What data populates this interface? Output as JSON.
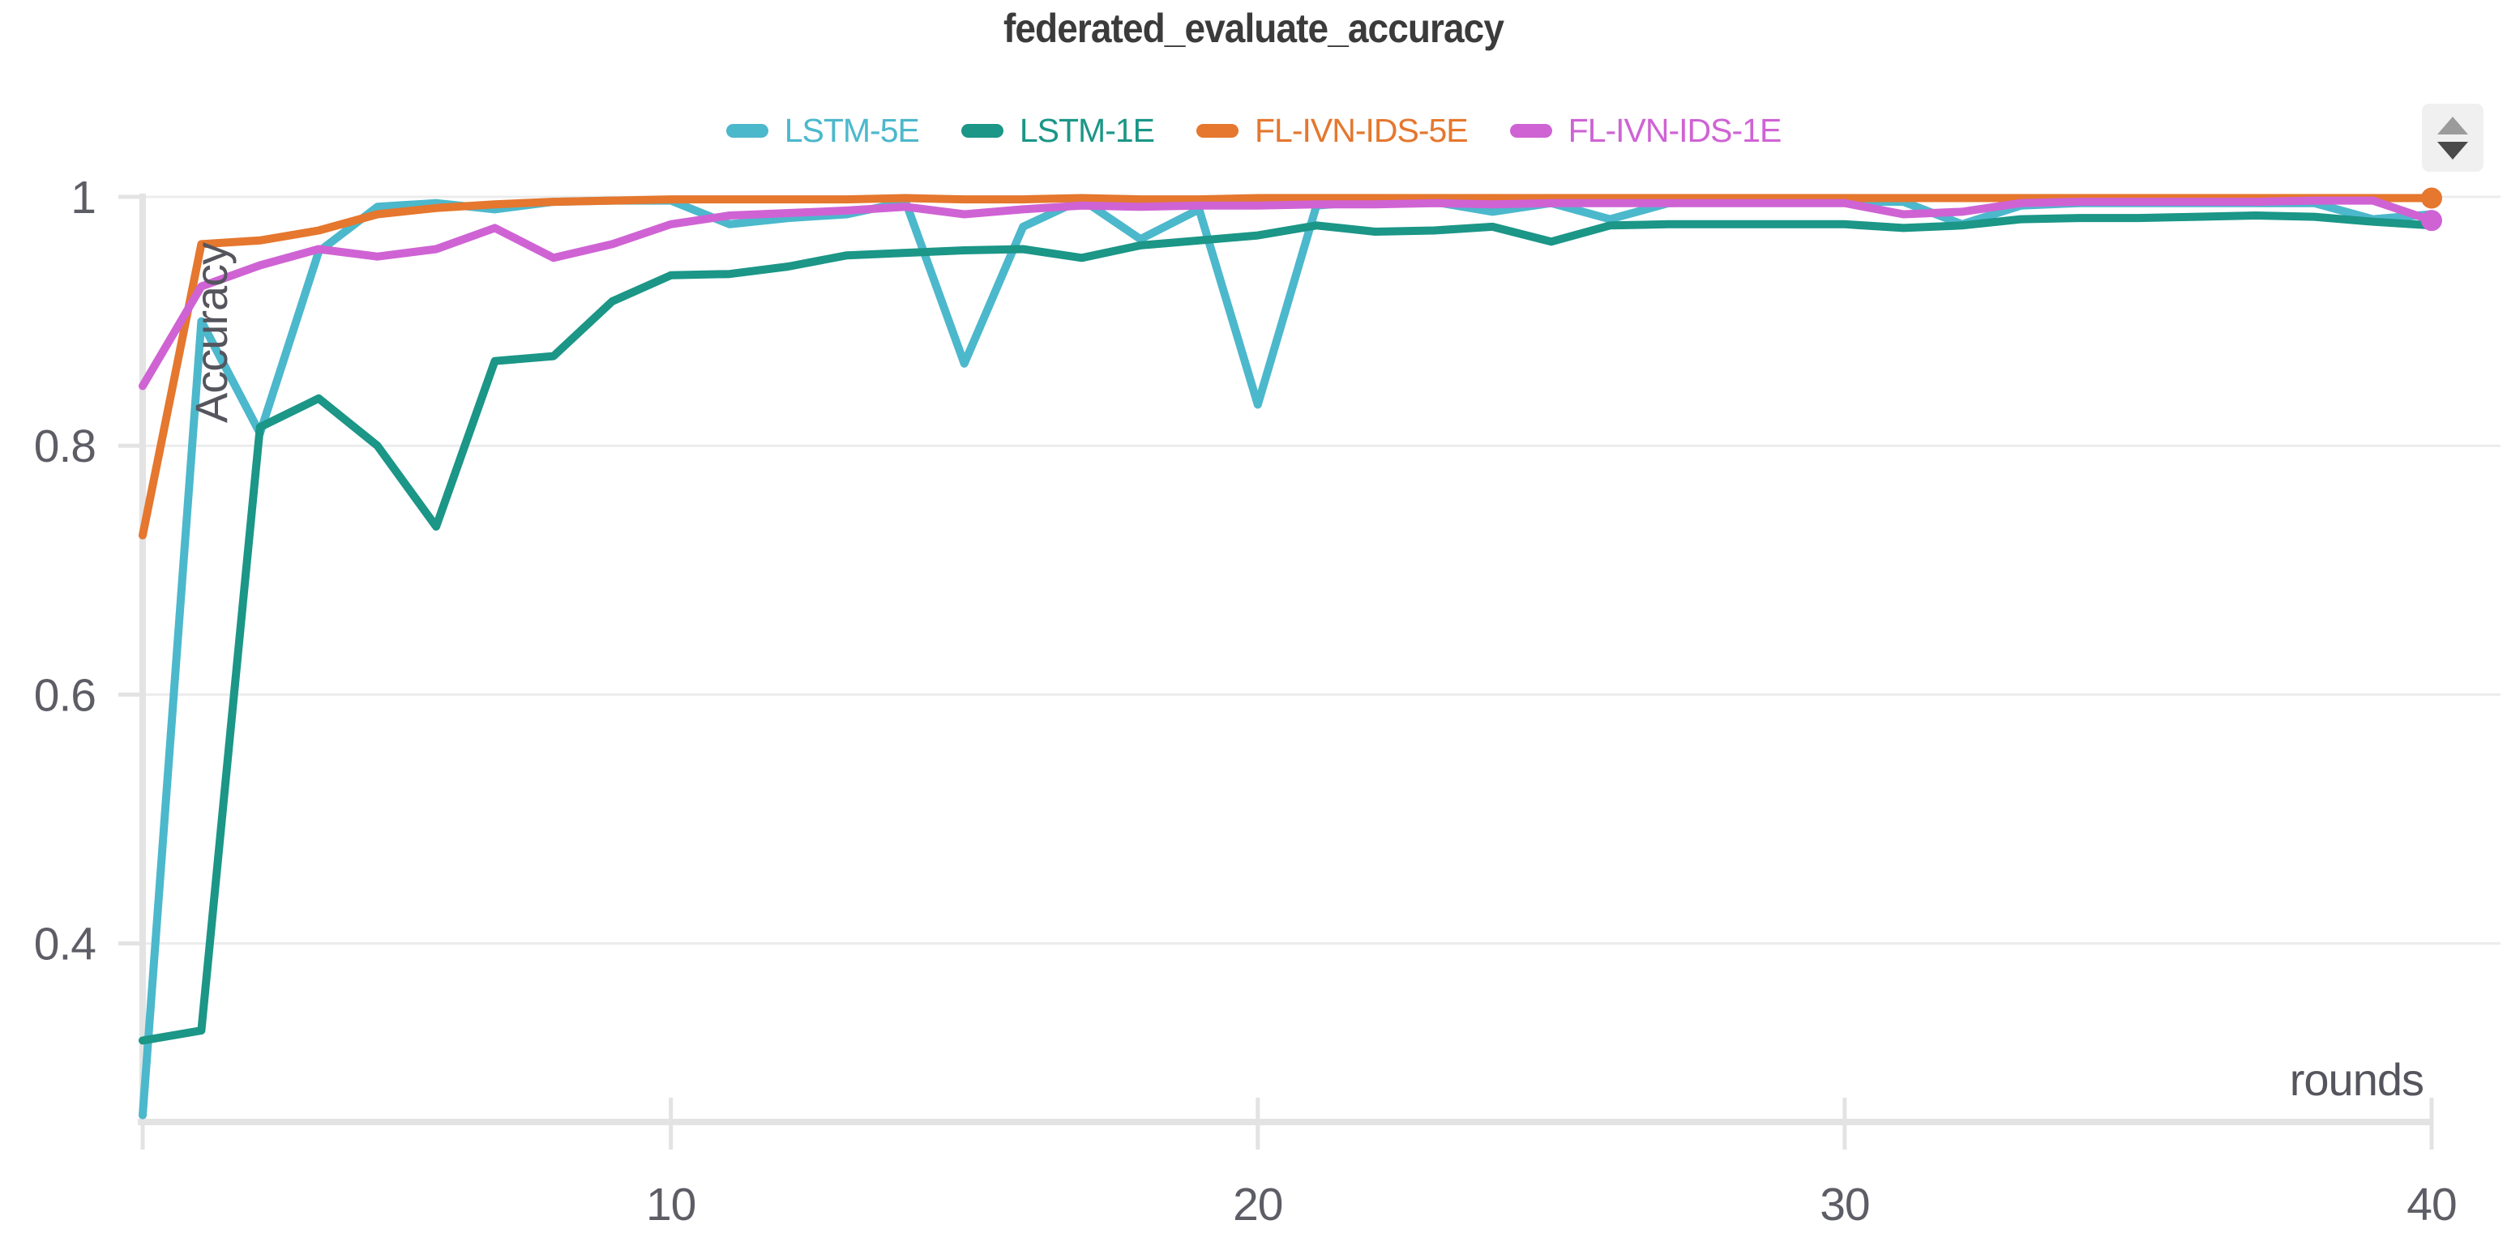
{
  "header": {
    "title": "federated_evaluate_accuracy"
  },
  "controls": {
    "stepper_icon": "up-down-stepper"
  },
  "chart_data": {
    "type": "line",
    "title": "federated_evaluate_accuracy",
    "xlabel": "rounds",
    "ylabel": "Accuracy",
    "xlim": [
      1,
      40
    ],
    "ylim": [
      0.2565,
      1.0
    ],
    "xticks": [
      10,
      20,
      30,
      40
    ],
    "xtick_labels": [
      "10",
      "20",
      "30",
      "40"
    ],
    "extra_xticks": [
      1
    ],
    "yticks": [
      0.4,
      0.6,
      0.8,
      1
    ],
    "ytick_labels": [
      "0.4",
      "0.6",
      "0.8",
      "1"
    ],
    "grid": "horizontal",
    "legend_position": "top-center",
    "x": [
      1,
      2,
      3,
      4,
      5,
      6,
      7,
      8,
      9,
      10,
      11,
      12,
      13,
      14,
      15,
      16,
      17,
      18,
      19,
      20,
      21,
      22,
      23,
      24,
      25,
      26,
      27,
      28,
      29,
      30,
      31,
      32,
      33,
      34,
      35,
      36,
      37,
      38,
      39,
      40
    ],
    "series": [
      {
        "name": "LSTM-5E",
        "color": "#4cb8cc",
        "end_dot": false,
        "values": [
          0.262,
          0.9,
          0.81,
          0.956,
          0.992,
          0.995,
          0.99,
          0.996,
          0.997,
          0.997,
          0.978,
          0.983,
          0.986,
          0.996,
          0.866,
          0.976,
          0.998,
          0.966,
          0.99,
          0.833,
          0.993,
          0.997,
          0.996,
          0.988,
          0.995,
          0.982,
          0.995,
          0.996,
          0.996,
          0.996,
          0.996,
          0.978,
          0.993,
          0.995,
          0.995,
          0.995,
          0.995,
          0.995,
          0.982,
          0.986
        ]
      },
      {
        "name": "LSTM-1E",
        "color": "#1b9687",
        "end_dot": false,
        "values": [
          0.322,
          0.33,
          0.815,
          0.838,
          0.8,
          0.735,
          0.868,
          0.872,
          0.916,
          0.937,
          0.938,
          0.944,
          0.953,
          0.955,
          0.957,
          0.958,
          0.951,
          0.961,
          0.965,
          0.969,
          0.977,
          0.972,
          0.973,
          0.976,
          0.964,
          0.977,
          0.978,
          0.978,
          0.978,
          0.978,
          0.975,
          0.977,
          0.982,
          0.983,
          0.983,
          0.984,
          0.985,
          0.984,
          0.98,
          0.977
        ]
      },
      {
        "name": "FL-IVN-IDS-5E",
        "color": "#e5772e",
        "end_dot": true,
        "values": [
          0.728,
          0.962,
          0.965,
          0.973,
          0.986,
          0.991,
          0.994,
          0.996,
          0.997,
          0.998,
          0.998,
          0.998,
          0.998,
          0.999,
          0.998,
          0.998,
          0.999,
          0.998,
          0.998,
          0.999,
          0.999,
          0.999,
          0.999,
          0.999,
          0.999,
          0.999,
          0.999,
          0.999,
          0.999,
          0.999,
          0.999,
          0.999,
          0.999,
          0.999,
          0.999,
          0.999,
          0.999,
          0.999,
          0.999,
          0.999
        ]
      },
      {
        "name": "FL-IVN-IDS-1E",
        "color": "#cf63d4",
        "end_dot": true,
        "values": [
          0.848,
          0.928,
          0.945,
          0.958,
          0.952,
          0.958,
          0.975,
          0.951,
          0.962,
          0.978,
          0.985,
          0.987,
          0.989,
          0.992,
          0.986,
          0.99,
          0.993,
          0.992,
          0.993,
          0.993,
          0.994,
          0.994,
          0.995,
          0.994,
          0.995,
          0.995,
          0.995,
          0.995,
          0.995,
          0.995,
          0.986,
          0.988,
          0.995,
          0.996,
          0.996,
          0.996,
          0.996,
          0.997,
          0.997,
          0.981
        ]
      }
    ],
    "colors": {
      "grid": "#ececec",
      "axis": "#e3e3e3",
      "title_text": "#3b3b3b",
      "tick_text": "#5d5d66",
      "axis_label_text": "#55555e",
      "icon_bg": "#f0f0f0",
      "icon_up_arrow": "#9b9b9b",
      "icon_down_arrow": "#4a4a4a"
    }
  }
}
